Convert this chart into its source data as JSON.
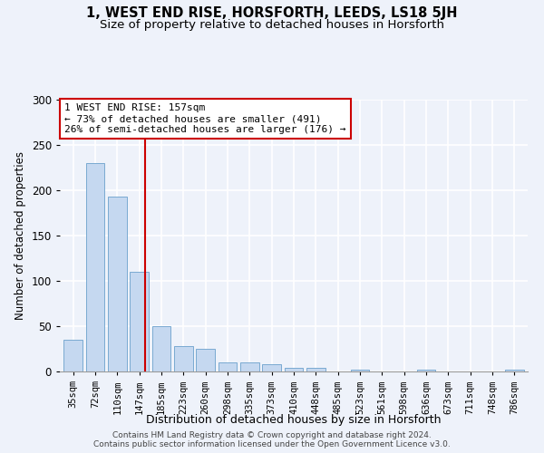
{
  "title": "1, WEST END RISE, HORSFORTH, LEEDS, LS18 5JH",
  "subtitle": "Size of property relative to detached houses in Horsforth",
  "xlabel": "Distribution of detached houses by size in Horsforth",
  "ylabel": "Number of detached properties",
  "categories": [
    "35sqm",
    "72sqm",
    "110sqm",
    "147sqm",
    "185sqm",
    "223sqm",
    "260sqm",
    "298sqm",
    "335sqm",
    "373sqm",
    "410sqm",
    "448sqm",
    "485sqm",
    "523sqm",
    "561sqm",
    "598sqm",
    "636sqm",
    "673sqm",
    "711sqm",
    "748sqm",
    "786sqm"
  ],
  "values": [
    35,
    230,
    193,
    110,
    50,
    28,
    25,
    10,
    10,
    8,
    4,
    4,
    0,
    2,
    0,
    0,
    2,
    0,
    0,
    0,
    2
  ],
  "bar_color": "#c5d8f0",
  "bar_edge_color": "#6aa0cc",
  "background_color": "#eef2fa",
  "grid_color": "#ffffff",
  "annotation_text": "1 WEST END RISE: 157sqm\n← 73% of detached houses are smaller (491)\n26% of semi-detached houses are larger (176) →",
  "annotation_box_color": "#ffffff",
  "annotation_box_edge": "#cc0000",
  "vline_color": "#cc0000",
  "ylim": [
    0,
    300
  ],
  "yticks": [
    0,
    50,
    100,
    150,
    200,
    250,
    300
  ],
  "footer_line1": "Contains HM Land Registry data © Crown copyright and database right 2024.",
  "footer_line2": "Contains public sector information licensed under the Open Government Licence v3.0.",
  "title_fontsize": 10.5,
  "subtitle_fontsize": 9.5,
  "bar_width": 0.85
}
